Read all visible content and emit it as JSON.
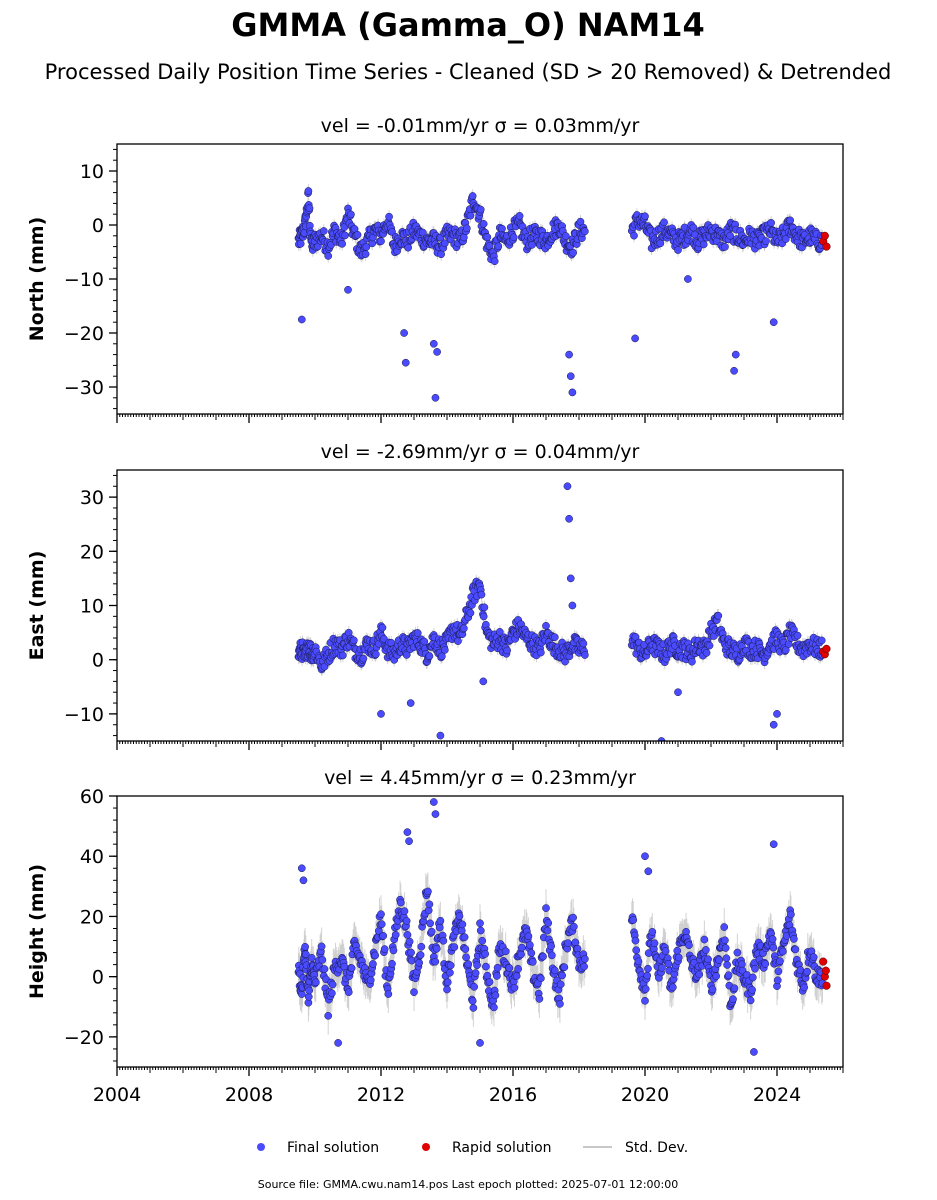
{
  "chart_data": {
    "type": "scatter",
    "title": "GMMA (Gamma_O) NAM14",
    "subtitle": "Processed Daily Position Time Series - Cleaned (SD > 20 Removed) & Detrended",
    "legend": {
      "position": "bottom-center",
      "entries": [
        {
          "label": "Final solution",
          "color": "#4a4aff",
          "marker": "dot"
        },
        {
          "label": "Rapid solution",
          "color": "#e00000",
          "marker": "dot"
        },
        {
          "label": "Std. Dev.",
          "color": "#c8c8c8",
          "marker": "line"
        }
      ]
    },
    "footer": "Source file: GMMA.cwu.nam14.pos  Last epoch plotted: 2025-07-01 12:00:00",
    "x_axis": {
      "label": "",
      "range": [
        2004.0,
        2026.0
      ],
      "ticks": [
        2004,
        2008,
        2012,
        2016,
        2020,
        2024
      ],
      "tick_labels": [
        "2004",
        "2008",
        "2012",
        "2016",
        "2020",
        "2024"
      ]
    },
    "colors": {
      "final": "#4a4aff",
      "rapid": "#e00000",
      "std": "#c8c8c8"
    },
    "panels": [
      {
        "component": "north",
        "title": "vel = -0.01mm/yr   σ = 0.03mm/yr",
        "ylabel": "North (mm)",
        "ylim": [
          -35,
          15
        ],
        "yticks": [
          10,
          0,
          -10,
          -20,
          -30
        ],
        "ytick_labels": [
          "10",
          "0",
          "−10",
          "−20",
          "−30"
        ],
        "final_series": {
          "x": [
            2009.5,
            2009.6,
            2009.7,
            2009.8,
            2009.9,
            2010.0,
            2010.2,
            2010.4,
            2010.6,
            2010.8,
            2011.0,
            2011.2,
            2011.4,
            2011.6,
            2011.8,
            2012.0,
            2012.2,
            2012.4,
            2012.6,
            2012.8,
            2013.0,
            2013.2,
            2013.4,
            2013.6,
            2013.8,
            2014.0,
            2014.2,
            2014.4,
            2014.6,
            2014.8,
            2015.0,
            2015.2,
            2015.4,
            2015.6,
            2015.8,
            2016.0,
            2016.2,
            2016.4,
            2016.6,
            2016.8,
            2017.0,
            2017.2,
            2017.4,
            2017.6,
            2017.8,
            2018.0,
            2019.6,
            2019.8,
            2020.0,
            2020.2,
            2020.4,
            2020.6,
            2020.8,
            2021.0,
            2021.2,
            2021.4,
            2021.6,
            2021.8,
            2022.0,
            2022.2,
            2022.4,
            2022.6,
            2022.8,
            2023.0,
            2023.2,
            2023.4,
            2023.6,
            2023.8,
            2024.0,
            2024.2,
            2024.4,
            2024.6,
            2024.8,
            2025.0,
            2025.2
          ],
          "y": [
            -3,
            -2,
            0,
            5,
            -4,
            -3,
            -2,
            -4,
            -1,
            -3,
            2,
            -2,
            -5,
            -3,
            -1,
            -2,
            1,
            -4,
            -2,
            -3,
            -1,
            -2,
            -3,
            -3,
            -4,
            -2,
            -2,
            -3,
            0,
            5,
            2,
            -3,
            -6,
            -2,
            -3,
            -1,
            0,
            -3,
            -2,
            -2,
            -3,
            -1,
            0,
            -3,
            -4,
            -1,
            -1,
            1,
            0,
            -3,
            -2,
            -1,
            -2,
            -3,
            -2,
            -1,
            -3,
            -2,
            -1,
            -2,
            -3,
            -1,
            -2,
            -3,
            -2,
            -3,
            -2,
            -1,
            -3,
            -2,
            0,
            -2,
            -3,
            -2,
            -3
          ]
        },
        "outliers": {
          "x": [
            2009.6,
            2012.7,
            2012.75,
            2013.6,
            2013.65,
            2017.75,
            2017.8,
            2017.7,
            2019.7,
            2021.3,
            2022.7,
            2022.75,
            2023.9,
            2011.0,
            2013.7
          ],
          "y": [
            -17.5,
            -20,
            -25.5,
            -22,
            -32,
            -28,
            -31,
            -24,
            -21,
            -10,
            -27,
            -24,
            -18,
            -12,
            -23.5
          ]
        },
        "rapid_series": {
          "x": [
            2025.4,
            2025.45,
            2025.5
          ],
          "y": [
            -3,
            -2,
            -4
          ]
        }
      },
      {
        "component": "east",
        "title": "vel = -2.69mm/yr   σ = 0.04mm/yr",
        "ylabel": "East (mm)",
        "ylim": [
          -15,
          35
        ],
        "yticks": [
          30,
          20,
          10,
          0,
          -10
        ],
        "ytick_labels": [
          "30",
          "20",
          "10",
          "0",
          "−10"
        ],
        "final_series": {
          "x": [
            2009.5,
            2009.6,
            2009.7,
            2009.8,
            2009.9,
            2010.0,
            2010.2,
            2010.4,
            2010.6,
            2010.8,
            2011.0,
            2011.2,
            2011.4,
            2011.6,
            2011.8,
            2012.0,
            2012.2,
            2012.4,
            2012.6,
            2012.8,
            2013.0,
            2013.2,
            2013.4,
            2013.6,
            2013.8,
            2014.0,
            2014.2,
            2014.4,
            2014.6,
            2014.8,
            2015.0,
            2015.2,
            2015.4,
            2015.6,
            2015.8,
            2016.0,
            2016.2,
            2016.4,
            2016.6,
            2016.8,
            2017.0,
            2017.2,
            2017.4,
            2017.6,
            2017.8,
            2018.0,
            2019.6,
            2019.8,
            2020.0,
            2020.2,
            2020.4,
            2020.6,
            2020.8,
            2021.0,
            2021.2,
            2021.4,
            2021.6,
            2021.8,
            2022.0,
            2022.2,
            2022.4,
            2022.6,
            2022.8,
            2023.0,
            2023.2,
            2023.4,
            2023.6,
            2023.8,
            2024.0,
            2024.2,
            2024.4,
            2024.6,
            2024.8,
            2025.0,
            2025.2
          ],
          "y": [
            1,
            2,
            0,
            3,
            1,
            2,
            -1,
            1,
            3,
            2,
            4,
            2,
            1,
            3,
            2,
            5,
            2,
            1,
            3,
            2,
            4,
            3,
            1,
            4,
            2,
            3,
            6,
            4,
            8,
            12,
            14,
            5,
            3,
            4,
            2,
            5,
            6,
            4,
            3,
            2,
            5,
            3,
            2,
            1,
            3,
            2,
            4,
            2,
            1,
            3,
            2,
            1,
            3,
            2,
            2,
            1,
            3,
            2,
            5,
            7,
            3,
            2,
            1,
            3,
            2,
            2,
            1,
            3,
            4,
            2,
            5,
            3,
            2,
            3,
            2
          ]
        },
        "outliers": {
          "x": [
            2017.65,
            2017.7,
            2017.75,
            2017.8,
            2012.0,
            2012.9,
            2013.8,
            2020.5,
            2024.0,
            2023.9,
            2021.0,
            2015.1
          ],
          "y": [
            32,
            26,
            15,
            10,
            -10,
            -8,
            -14,
            -15,
            -10,
            -12,
            -6,
            -4
          ]
        },
        "rapid_series": {
          "x": [
            2025.4,
            2025.45,
            2025.5
          ],
          "y": [
            1.5,
            1,
            2
          ]
        }
      },
      {
        "component": "height",
        "title": "vel = 4.45mm/yr   σ = 0.23mm/yr",
        "ylabel": "Height (mm)",
        "ylim": [
          -30,
          60
        ],
        "yticks": [
          60,
          40,
          20,
          0,
          -20
        ],
        "ytick_labels": [
          "60",
          "40",
          "20",
          "0",
          "−20"
        ],
        "final_series": {
          "x": [
            2009.5,
            2009.6,
            2009.7,
            2009.8,
            2009.9,
            2010.0,
            2010.2,
            2010.4,
            2010.6,
            2010.8,
            2011.0,
            2011.2,
            2011.4,
            2011.6,
            2011.8,
            2012.0,
            2012.2,
            2012.4,
            2012.6,
            2012.8,
            2013.0,
            2013.2,
            2013.4,
            2013.6,
            2013.8,
            2014.0,
            2014.2,
            2014.4,
            2014.6,
            2014.8,
            2015.0,
            2015.2,
            2015.4,
            2015.6,
            2015.8,
            2016.0,
            2016.2,
            2016.4,
            2016.6,
            2016.8,
            2017.0,
            2017.2,
            2017.4,
            2017.6,
            2017.8,
            2018.0,
            2019.6,
            2019.8,
            2020.0,
            2020.2,
            2020.4,
            2020.6,
            2020.8,
            2021.0,
            2021.2,
            2021.4,
            2021.6,
            2021.8,
            2022.0,
            2022.2,
            2022.4,
            2022.6,
            2022.8,
            2023.0,
            2023.2,
            2023.4,
            2023.6,
            2023.8,
            2024.0,
            2024.2,
            2024.4,
            2024.6,
            2024.8,
            2025.0,
            2025.2
          ],
          "y": [
            2,
            -5,
            10,
            -8,
            5,
            -2,
            8,
            -10,
            3,
            6,
            -4,
            10,
            5,
            -3,
            8,
            20,
            -5,
            12,
            25,
            15,
            -3,
            10,
            30,
            5,
            18,
            -2,
            12,
            20,
            5,
            -8,
            15,
            2,
            -10,
            10,
            5,
            -3,
            8,
            15,
            2,
            -5,
            20,
            5,
            -8,
            10,
            18,
            5,
            20,
            5,
            -5,
            15,
            0,
            10,
            -5,
            8,
            15,
            5,
            0,
            10,
            -3,
            5,
            15,
            -10,
            5,
            0,
            -5,
            10,
            5,
            15,
            0,
            10,
            20,
            5,
            -3,
            10,
            0
          ]
        },
        "outliers": {
          "x": [
            2009.6,
            2009.65,
            2012.8,
            2012.85,
            2013.6,
            2013.65,
            2020.0,
            2020.1,
            2023.9,
            2015.0,
            2010.7,
            2023.3
          ],
          "y": [
            36,
            32,
            48,
            45,
            58,
            54,
            40,
            35,
            44,
            -22,
            -22,
            -25
          ]
        },
        "rapid_series": {
          "x": [
            2025.4,
            2025.45,
            2025.5,
            2025.48
          ],
          "y": [
            5,
            0,
            -3,
            2
          ]
        }
      }
    ]
  }
}
